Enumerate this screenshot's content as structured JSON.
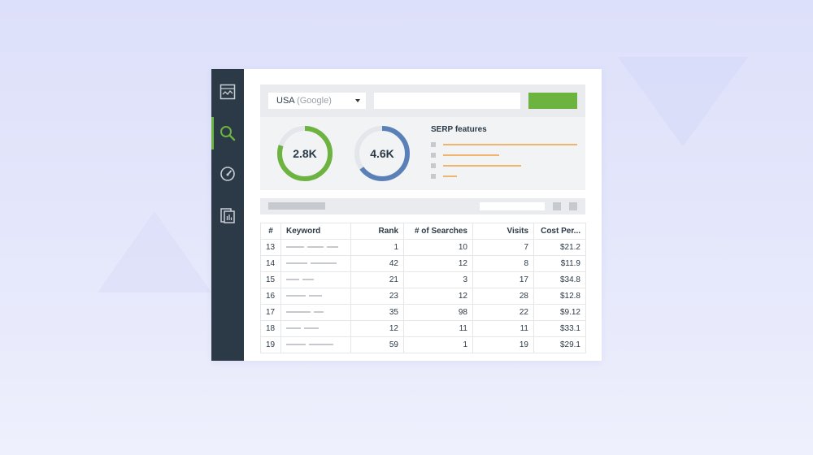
{
  "colors": {
    "accent_green": "#6db33f",
    "ring_blue": "#5b80b8",
    "ring_track": "#e3e6ea",
    "serp_bar": "#f0b46e",
    "sidebar_bg": "#2c3a47"
  },
  "sidebar": {
    "items": [
      {
        "icon": "chart-icon",
        "active": false
      },
      {
        "icon": "search-icon",
        "active": true
      },
      {
        "icon": "gauge-icon",
        "active": false
      },
      {
        "icon": "report-icon",
        "active": false
      }
    ]
  },
  "toolbar": {
    "country": "USA",
    "engine": "(Google)"
  },
  "summary": {
    "ring1": {
      "value": "2.8K",
      "fill": 0.8
    },
    "ring2": {
      "value": "4.6K",
      "fill": 0.65
    },
    "serp_title": "SERP features",
    "serp_levels": [
      1.0,
      0.42,
      0.58,
      0.1
    ]
  },
  "table": {
    "headers": {
      "index": "#",
      "keyword": "Keyword",
      "rank": "Rank",
      "searches": "# of Searches",
      "visits": "Visits",
      "cost": "Cost Per..."
    },
    "rows": [
      {
        "index": "13",
        "rank": "1",
        "searches": "10",
        "visits": "7",
        "cost": "$21.2"
      },
      {
        "index": "14",
        "rank": "42",
        "searches": "12",
        "visits": "8",
        "cost": "$11.9"
      },
      {
        "index": "15",
        "rank": "21",
        "searches": "3",
        "visits": "17",
        "cost": "$34.8"
      },
      {
        "index": "16",
        "rank": "23",
        "searches": "12",
        "visits": "28",
        "cost": "$12.8"
      },
      {
        "index": "17",
        "rank": "35",
        "searches": "98",
        "visits": "22",
        "cost": "$9.12"
      },
      {
        "index": "18",
        "rank": "12",
        "searches": "11",
        "visits": "11",
        "cost": "$33.1"
      },
      {
        "index": "19",
        "rank": "59",
        "searches": "1",
        "visits": "19",
        "cost": "$29.1"
      }
    ]
  }
}
